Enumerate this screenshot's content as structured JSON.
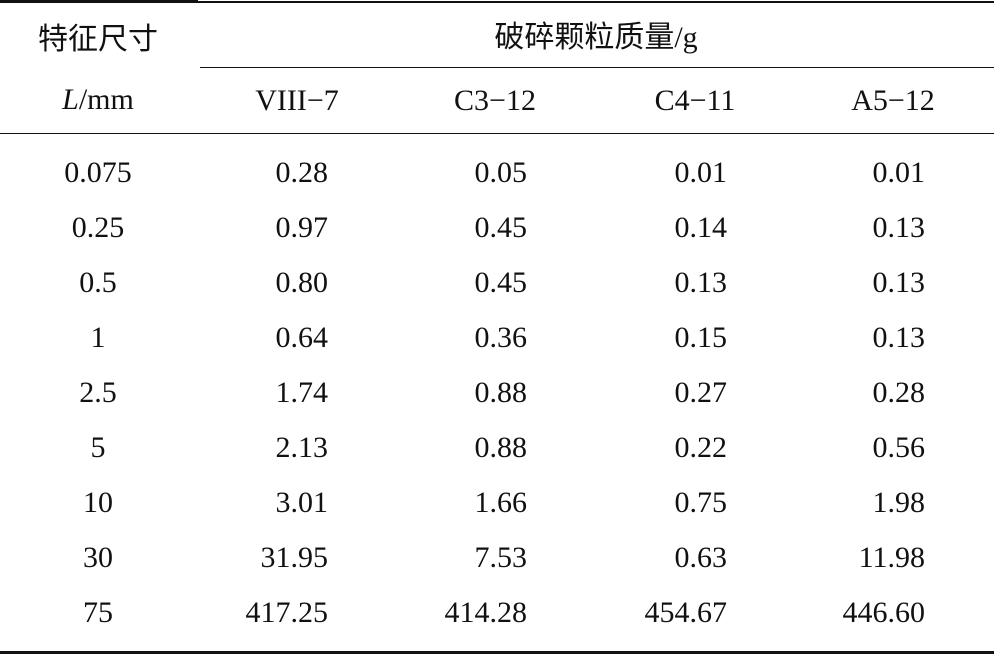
{
  "header": {
    "row_header": "特征尺寸",
    "unit_symbol": "L",
    "unit": "/mm",
    "group": "破碎颗粒质量/g",
    "columns": [
      "VIII−7",
      "C3−12",
      "C4−11",
      "A5−12"
    ]
  },
  "table": {
    "rows": [
      [
        "0.075",
        "0.28",
        "0.05",
        "0.01",
        "0.01"
      ],
      [
        "0.25",
        "0.97",
        "0.45",
        "0.14",
        "0.13"
      ],
      [
        "0.5",
        "0.80",
        "0.45",
        "0.13",
        "0.13"
      ],
      [
        "1",
        "0.64",
        "0.36",
        "0.15",
        "0.13"
      ],
      [
        "2.5",
        "1.74",
        "0.88",
        "0.27",
        "0.28"
      ],
      [
        "5",
        "2.13",
        "0.88",
        "0.22",
        "0.56"
      ],
      [
        "10",
        "3.01",
        "1.66",
        "0.75",
        "1.98"
      ],
      [
        "30",
        "31.95",
        "7.53",
        "0.63",
        "11.98"
      ],
      [
        "75",
        "417.25",
        "414.28",
        "454.67",
        "446.60"
      ]
    ]
  }
}
